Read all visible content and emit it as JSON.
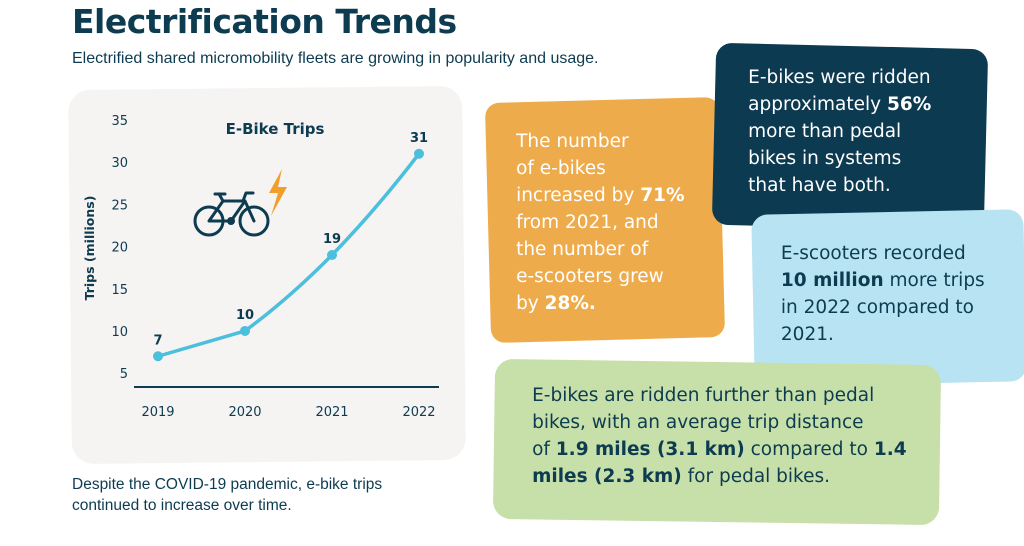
{
  "header": {
    "title": "Electrification Trends",
    "subtitle": "Electrified shared micromobility fleets are growing in popularity and usage."
  },
  "chart_data": {
    "type": "line",
    "title": "E-Bike Trips",
    "ylabel": "Trips (millions)",
    "xlabel": "",
    "categories": [
      "2019",
      "2020",
      "2021",
      "2022"
    ],
    "values": [
      7,
      10,
      19,
      31
    ],
    "data_labels": [
      "7",
      "10",
      "19",
      "31"
    ],
    "y_ticks": [
      5,
      10,
      15,
      20,
      25,
      30,
      35
    ],
    "ylim": [
      3,
      35
    ],
    "grid": false,
    "legend": "none",
    "line_color": "#4bbfdc",
    "icons": [
      "bicycle-icon",
      "lightning-bolt-icon"
    ]
  },
  "caption": "Despite the COVID-19 pandemic, e-bike trips continued to increase over time.",
  "colors": {
    "navy": "#0c3a51",
    "orange": "#eeab4c",
    "light_blue": "#b8e3f2",
    "green": "#c7dfa9",
    "card": "#f6f3f3",
    "bolt": "#f0a02a"
  },
  "callouts": {
    "orange": {
      "l1": "The number",
      "l2": "of e-bikes",
      "l3a": "increased by ",
      "l3b": "71%",
      "l4": "from 2021, and",
      "l5": "the number of",
      "l6": "e-scooters grew",
      "l7a": "by ",
      "l7b": "28%."
    },
    "navy": {
      "l1": "E-bikes were ridden",
      "l2a": "approximately ",
      "l2b": "56%",
      "l3": "more than pedal",
      "l4": "bikes in systems",
      "l5": "that have both."
    },
    "light_blue": {
      "l1": "E-scooters recorded",
      "l2a": "10 million",
      "l2b": " more trips",
      "l3": "in 2022 compared to",
      "l4": "2021."
    },
    "green": {
      "l1": "E-bikes are ridden further than pedal",
      "l2": "bikes, with an average trip distance",
      "l3a": "of ",
      "l3b": "1.9 miles (3.1 km)",
      "l3c": " compared to ",
      "l3d": "1.4",
      "l4a": "miles (2.3 km)",
      "l4b": " for pedal bikes."
    }
  }
}
